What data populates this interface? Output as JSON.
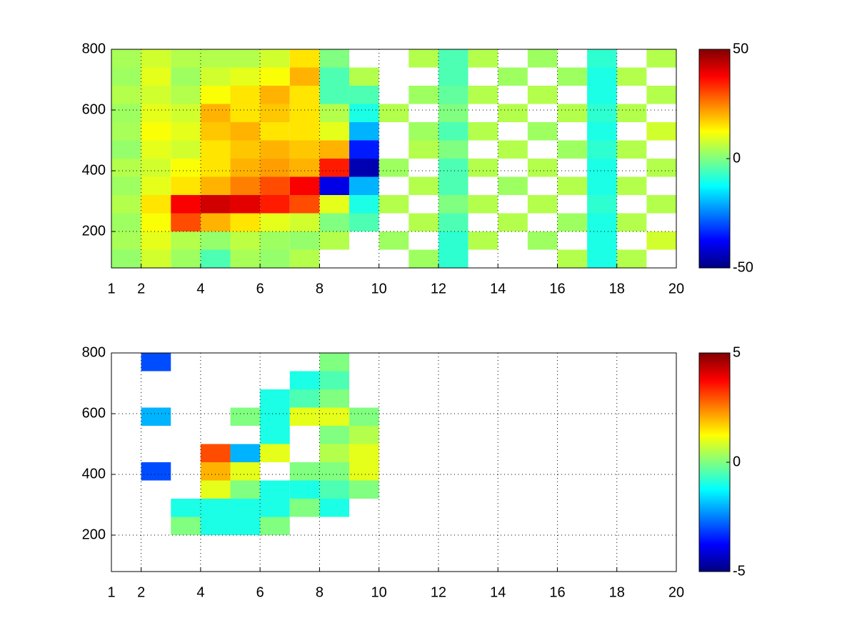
{
  "chart_data": [
    {
      "type": "heatmap",
      "colormap": "jet",
      "grid": true,
      "xlim": [
        1,
        20
      ],
      "xticks": [
        1,
        2,
        4,
        6,
        8,
        10,
        12,
        14,
        16,
        18,
        20
      ],
      "ylim": [
        80,
        800
      ],
      "yticks": [
        200,
        400,
        600,
        800
      ],
      "clim": [
        -50,
        50
      ],
      "cticks": [
        -50,
        0,
        50
      ],
      "x_edges": [
        1,
        2,
        3,
        4,
        5,
        6,
        7,
        8,
        9,
        10,
        11,
        12,
        13,
        14,
        15,
        16,
        17,
        18,
        19,
        20
      ],
      "y_edges": [
        80,
        140,
        200,
        260,
        320,
        380,
        440,
        500,
        560,
        620,
        680,
        740,
        800
      ],
      "z": [
        [
          2,
          8,
          3,
          -5,
          4,
          2,
          5,
          null,
          null,
          null,
          3,
          -8,
          null,
          null,
          null,
          5,
          -10,
          5,
          null
        ],
        [
          4,
          10,
          5,
          2,
          6,
          3,
          2,
          5,
          null,
          3,
          null,
          -8,
          5,
          null,
          3,
          null,
          -10,
          null,
          8
        ],
        [
          3,
          12,
          30,
          20,
          15,
          10,
          8,
          0,
          -5,
          null,
          5,
          -5,
          null,
          5,
          null,
          3,
          -10,
          5,
          null
        ],
        [
          5,
          15,
          38,
          42,
          40,
          35,
          30,
          10,
          -10,
          5,
          null,
          0,
          5,
          null,
          5,
          null,
          -8,
          null,
          5
        ],
        [
          3,
          10,
          15,
          20,
          25,
          30,
          38,
          -40,
          -20,
          null,
          5,
          -5,
          null,
          3,
          null,
          5,
          -10,
          5,
          null
        ],
        [
          5,
          8,
          12,
          15,
          20,
          22,
          20,
          35,
          -45,
          3,
          null,
          -5,
          5,
          null,
          5,
          null,
          -10,
          null,
          5
        ],
        [
          2,
          10,
          8,
          15,
          18,
          20,
          18,
          20,
          -35,
          null,
          5,
          0,
          null,
          5,
          null,
          3,
          -8,
          5,
          null
        ],
        [
          4,
          12,
          10,
          18,
          20,
          15,
          15,
          10,
          -20,
          null,
          3,
          -5,
          5,
          null,
          3,
          null,
          -10,
          null,
          8
        ],
        [
          3,
          10,
          8,
          20,
          15,
          18,
          15,
          5,
          -10,
          5,
          null,
          0,
          null,
          5,
          null,
          5,
          -8,
          5,
          null
        ],
        [
          5,
          8,
          5,
          12,
          15,
          20,
          15,
          -5,
          -5,
          null,
          3,
          -3,
          5,
          null,
          5,
          null,
          -10,
          null,
          5
        ],
        [
          3,
          10,
          3,
          8,
          10,
          12,
          20,
          -5,
          5,
          null,
          null,
          -5,
          null,
          3,
          null,
          3,
          -10,
          5,
          null
        ],
        [
          4,
          8,
          5,
          5,
          5,
          8,
          15,
          0,
          null,
          null,
          5,
          -5,
          5,
          null,
          3,
          null,
          -8,
          null,
          5
        ]
      ]
    },
    {
      "type": "heatmap",
      "colormap": "jet",
      "grid": true,
      "xlim": [
        1,
        20
      ],
      "xticks": [
        1,
        2,
        4,
        6,
        8,
        10,
        12,
        14,
        16,
        18,
        20
      ],
      "ylim": [
        80,
        800
      ],
      "yticks": [
        200,
        400,
        600,
        800
      ],
      "clim": [
        -5,
        5
      ],
      "cticks": [
        -5,
        0,
        5
      ],
      "x_edges": [
        1,
        2,
        3,
        4,
        5,
        6,
        7,
        8,
        9,
        10,
        11,
        12,
        13,
        14,
        15,
        16,
        17,
        18,
        19,
        20
      ],
      "y_edges": [
        80,
        140,
        200,
        260,
        320,
        380,
        440,
        500,
        560,
        620,
        680,
        740,
        800
      ],
      "z": [
        [
          null,
          null,
          null,
          null,
          null,
          null,
          null,
          null,
          null,
          null,
          null,
          null,
          null,
          null,
          null,
          null,
          null,
          null,
          null
        ],
        [
          null,
          null,
          null,
          null,
          null,
          null,
          null,
          null,
          null,
          null,
          null,
          null,
          null,
          null,
          null,
          null,
          null,
          null,
          null
        ],
        [
          null,
          null,
          0,
          -1,
          -1,
          0,
          null,
          null,
          null,
          null,
          null,
          null,
          null,
          null,
          null,
          null,
          null,
          null,
          null
        ],
        [
          null,
          null,
          -1,
          -1,
          -1,
          -1,
          0,
          -1,
          null,
          null,
          null,
          null,
          null,
          null,
          null,
          null,
          null,
          null,
          null
        ],
        [
          null,
          null,
          null,
          1,
          0,
          -1,
          -1,
          -0.5,
          0,
          null,
          null,
          null,
          null,
          null,
          null,
          null,
          null,
          null,
          null
        ],
        [
          null,
          -3,
          null,
          2,
          1,
          null,
          0,
          0,
          1,
          null,
          null,
          null,
          null,
          null,
          null,
          null,
          null,
          null,
          null
        ],
        [
          null,
          null,
          null,
          3,
          -2,
          1,
          null,
          0.5,
          1,
          null,
          null,
          null,
          null,
          null,
          null,
          null,
          null,
          null,
          null
        ],
        [
          null,
          null,
          null,
          null,
          null,
          -1,
          null,
          0,
          0.5,
          null,
          null,
          null,
          null,
          null,
          null,
          null,
          null,
          null,
          null
        ],
        [
          null,
          -2,
          null,
          null,
          0,
          -1,
          1,
          1,
          0,
          null,
          null,
          null,
          null,
          null,
          null,
          null,
          null,
          null,
          null
        ],
        [
          null,
          null,
          null,
          null,
          null,
          -1,
          -0.5,
          0,
          null,
          null,
          null,
          null,
          null,
          null,
          null,
          null,
          null,
          null,
          null
        ],
        [
          null,
          null,
          null,
          null,
          null,
          null,
          -1,
          -0.5,
          null,
          null,
          null,
          null,
          null,
          null,
          null,
          null,
          null,
          null,
          null
        ],
        [
          null,
          -3,
          null,
          null,
          null,
          null,
          null,
          0,
          null,
          null,
          null,
          null,
          null,
          null,
          null,
          null,
          null,
          null,
          null
        ]
      ]
    }
  ]
}
